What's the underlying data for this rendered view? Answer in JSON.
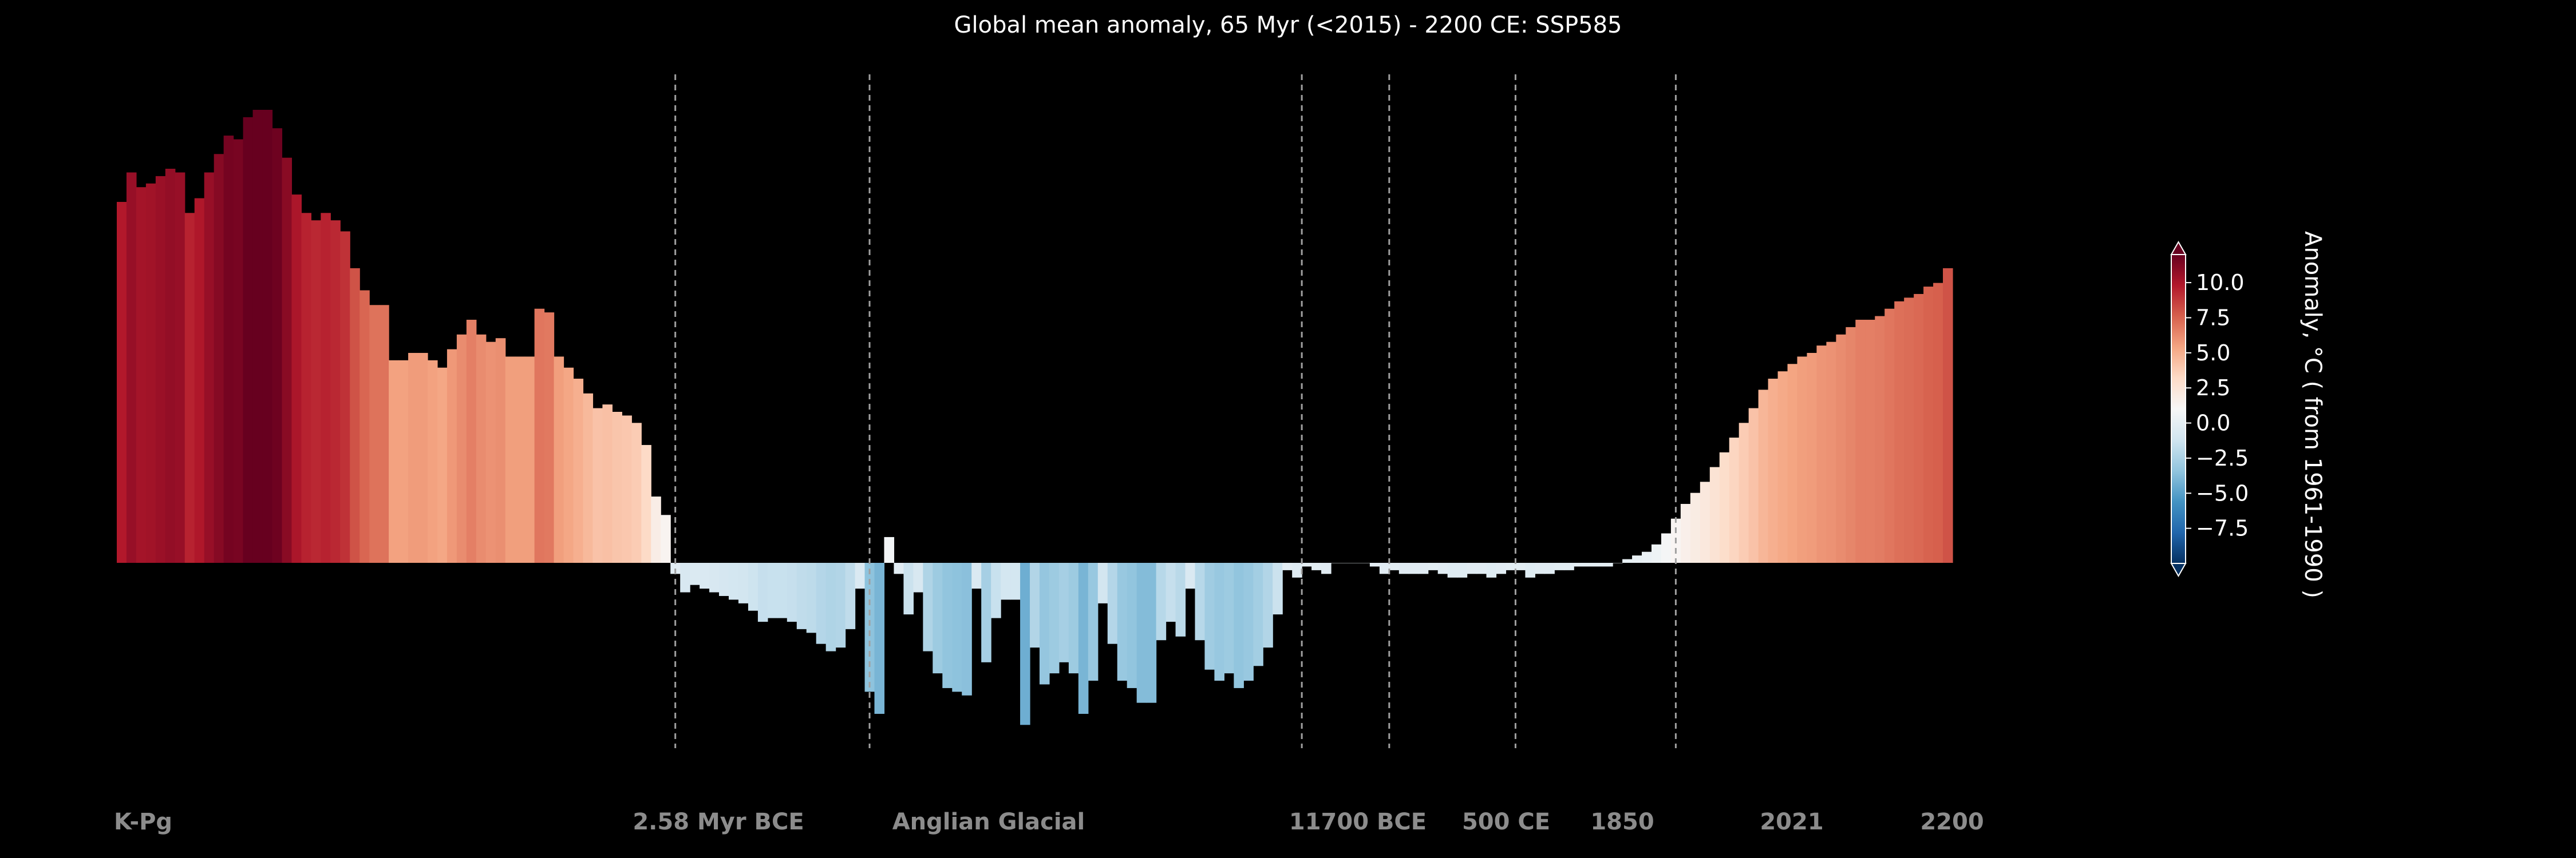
{
  "chart_data": {
    "type": "bar",
    "title": "Global mean anomaly, 65 Myr (<2015) - 2200 CE: SSP585",
    "xlabel": "",
    "ylabel": "",
    "ylim": [
      -11.5,
      11.5
    ],
    "grid": false,
    "values": [
      9.8,
      10.6,
      10.2,
      10.3,
      10.5,
      10.7,
      10.6,
      9.5,
      9.9,
      10.6,
      11.1,
      11.6,
      11.5,
      12.1,
      12.3,
      12.3,
      11.8,
      11.0,
      10.0,
      9.5,
      9.3,
      9.5,
      9.3,
      9.0,
      8.0,
      7.4,
      7.0,
      7.0,
      5.5,
      5.5,
      5.7,
      5.7,
      5.5,
      5.3,
      5.8,
      6.2,
      6.6,
      6.2,
      6.0,
      6.1,
      5.6,
      5.6,
      5.6,
      6.9,
      6.8,
      5.6,
      5.3,
      5.0,
      4.6,
      4.2,
      4.3,
      4.1,
      4.0,
      3.8,
      3.2,
      1.8,
      1.3,
      -0.3,
      -0.8,
      -0.6,
      -0.7,
      -0.8,
      -0.9,
      -1.0,
      -1.1,
      -1.3,
      -1.6,
      -1.5,
      -1.5,
      -1.6,
      -1.8,
      -1.9,
      -2.2,
      -2.4,
      -2.3,
      -1.8,
      -0.7,
      -3.5,
      -4.1,
      0.7,
      -0.3,
      -1.4,
      -0.8,
      -2.4,
      -3.0,
      -3.4,
      -3.5,
      -3.6,
      -0.7,
      -2.7,
      -1.5,
      -1.0,
      -1.0,
      -4.4,
      -2.3,
      -3.3,
      -3.0,
      -2.7,
      -3.0,
      -4.1,
      -3.2,
      -1.1,
      -2.2,
      -3.2,
      -3.4,
      -3.8,
      -3.8,
      -2.1,
      -1.6,
      -2.0,
      -0.7,
      -2.1,
      -2.9,
      -3.2,
      -3.0,
      -3.4,
      -3.2,
      -2.8,
      -2.3,
      -1.4,
      -0.2,
      -0.4,
      -0.1,
      -0.2,
      -0.3,
      0.0,
      0.0,
      0.0,
      0.0,
      -0.1,
      -0.3,
      -0.2,
      -0.3,
      -0.3,
      -0.3,
      -0.2,
      -0.3,
      -0.4,
      -0.4,
      -0.3,
      -0.3,
      -0.4,
      -0.3,
      -0.2,
      -0.2,
      -0.4,
      -0.3,
      -0.3,
      -0.2,
      -0.2,
      -0.1,
      -0.1,
      -0.1,
      -0.1,
      0.0,
      0.1,
      0.2,
      0.3,
      0.5,
      0.8,
      1.2,
      1.6,
      1.9,
      2.2,
      2.6,
      3.0,
      3.4,
      3.8,
      4.2,
      4.7,
      5.0,
      5.2,
      5.4,
      5.6,
      5.7,
      5.9,
      6.0,
      6.2,
      6.4,
      6.6,
      6.6,
      6.7,
      6.9,
      7.1,
      7.2,
      7.3,
      7.5,
      7.6,
      8.0
    ],
    "markers": [
      {
        "label": "K-Pg",
        "index": 0,
        "line": false,
        "tick_index": 0
      },
      {
        "label": "2.58 Myr BCE",
        "index": 57.5,
        "line": true,
        "tick_index": 57
      },
      {
        "label": "Anglian Glacial",
        "index": 77.5,
        "line": true,
        "tick_index": 77
      },
      {
        "label": "11700 BCE",
        "index": 122.0,
        "line": true,
        "tick_index": 122
      },
      {
        "label": "500 CE",
        "index": 131.0,
        "line": true,
        "tick_index": 131
      },
      {
        "label": "1850",
        "index": 144.0,
        "line": true,
        "tick_index": 144
      },
      {
        "label": "2021",
        "index": 160.5,
        "line": true,
        "tick_index": 160
      },
      {
        "label": "2200",
        "index": 176.0,
        "line": false,
        "tick_index": 176
      }
    ],
    "colorbar": {
      "label": "Anomaly, °C ( from 1961-1990 )",
      "min": -10,
      "max": 12,
      "ticks": [
        "10.0",
        "7.5",
        "5.0",
        "2.5",
        "0.0",
        "−2.5",
        "−5.0",
        "−7.5"
      ],
      "tick_values": [
        10.0,
        7.5,
        5.0,
        2.5,
        0.0,
        -2.5,
        -5.0,
        -7.5
      ],
      "colors": [
        "#053061",
        "#2166ac",
        "#4393c3",
        "#92c5de",
        "#d1e5f0",
        "#f7f7f7",
        "#fddbc7",
        "#f4a582",
        "#d6604d",
        "#b2182b",
        "#67001f"
      ]
    },
    "colors": {
      "background": "#000000",
      "text": "#ffffff",
      "marker_label": "#8c8c8c",
      "marker_line": "#a0a0a0"
    }
  }
}
